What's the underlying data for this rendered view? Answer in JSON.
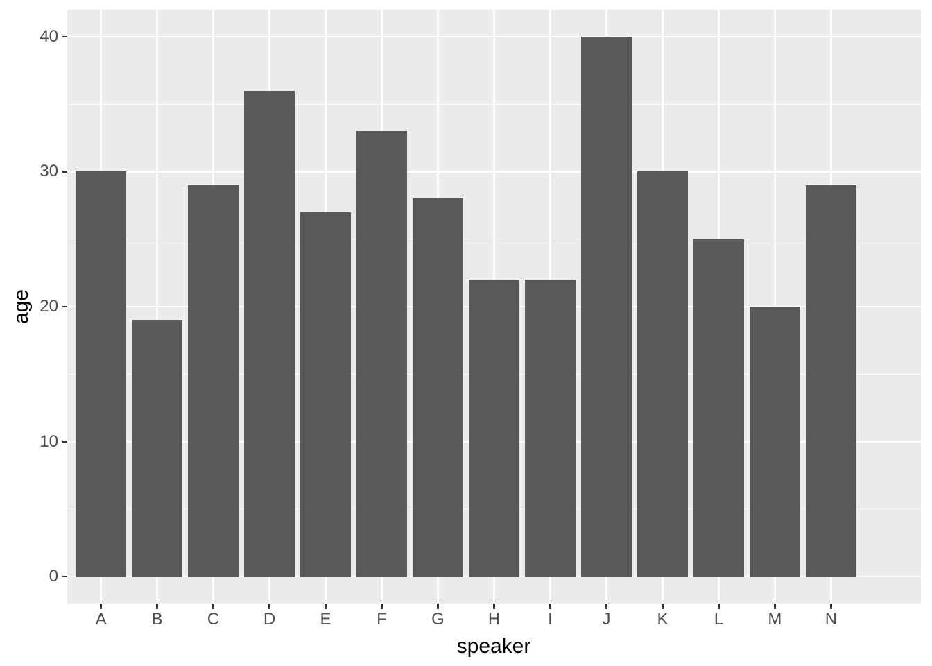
{
  "chart_data": {
    "type": "bar",
    "title": "",
    "xlabel": "speaker",
    "ylabel": "age",
    "categories": [
      "A",
      "B",
      "C",
      "D",
      "E",
      "F",
      "G",
      "H",
      "I",
      "J",
      "K",
      "L",
      "M",
      "N"
    ],
    "values": [
      30,
      19,
      29,
      36,
      27,
      33,
      28,
      22,
      22,
      40,
      30,
      25,
      20,
      29
    ],
    "ylim": [
      0,
      40
    ],
    "y_major_ticks": [
      0,
      10,
      20,
      30,
      40
    ],
    "y_minor_ticks": [
      5,
      15,
      25,
      35
    ],
    "grid": "on",
    "legend_position": "none",
    "theme": "ggplot2-grey",
    "colors": {
      "bar_fill": "#595959",
      "panel_background": "#EBEBEB",
      "grid_color": "#FFFFFF",
      "tick_label_color": "#4D4D4D",
      "axis_title_color": "#000000",
      "tick_mark_color": "#333333",
      "figure_background": "#FFFFFF"
    },
    "layout_hints": {
      "bar_width_fraction": 0.9,
      "x_expand_units": 0.6,
      "y_expand_fraction": 0.05
    }
  }
}
